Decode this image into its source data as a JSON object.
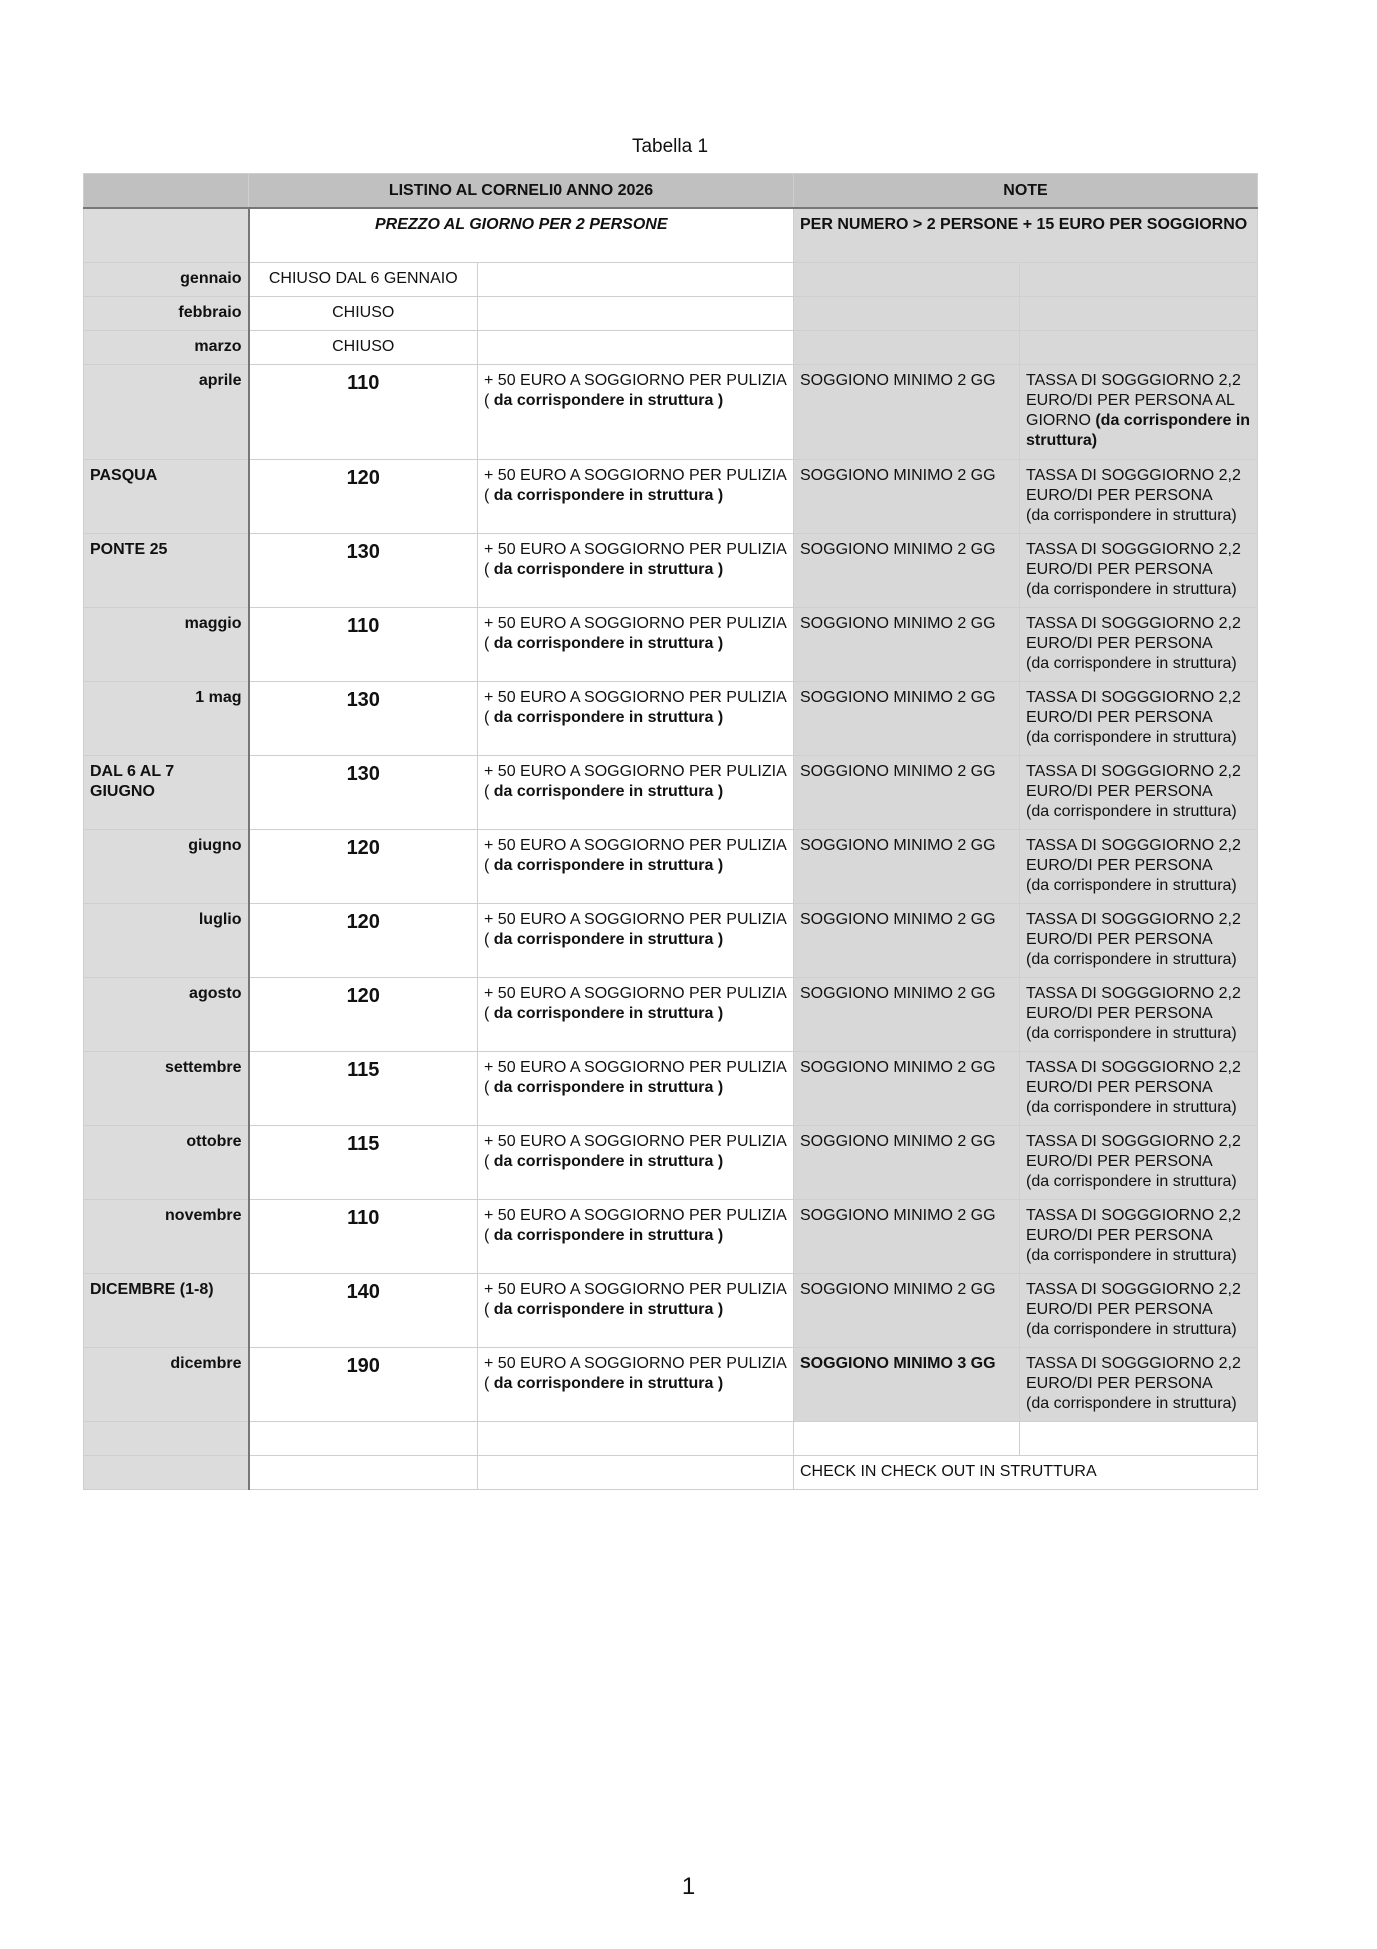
{
  "title": "Tabella 1",
  "header": {
    "listino": "LISTINO AL CORNELI0 ANNO 2026",
    "note": "NOTE"
  },
  "subheader": {
    "prezzo": "PREZZO AL GIORNO PER 2 PERSONE",
    "note": "PER NUMERO > 2 PERSONE + 15 EURO PER SOGGIORNO"
  },
  "closed_rows": [
    {
      "label": "gennaio",
      "value": "CHIUSO DAL 6 GENNAIO"
    },
    {
      "label": "febbraio",
      "value": "CHIUSO"
    },
    {
      "label": "marzo",
      "value": "CHIUSO"
    }
  ],
  "extra_a": "+ 50 EURO A SOGGIORNO PER PULIZIA  ( ",
  "extra_b": "da corrispondere in struttura )",
  "tax_a": "TASSA DI SOGGGIORNO 2,2 EURO/DI PER PERSONA",
  "tax_b": "(da corrispondere in struttura)",
  "tax_first_a": "TASSA DI SOGGGIORNO 2,2 EURO/DI PER PERSONA AL GIORNO  ",
  "tax_first_b": "(da corrispondere in struttura)",
  "rows": [
    {
      "label": "aprile",
      "price": "110",
      "min": "SOGGIONO MINIMO 2 GG"
    },
    {
      "label": "PASQUA",
      "price": "120",
      "min": "SOGGIONO MINIMO 2 GG"
    },
    {
      "label": "PONTE 25",
      "price": "130",
      "min": "SOGGIONO MINIMO 2 GG"
    },
    {
      "label": "maggio",
      "price": "110",
      "min": "SOGGIONO MINIMO 2 GG"
    },
    {
      "label": "1 mag",
      "price": "130",
      "min": "SOGGIONO MINIMO 2 GG"
    },
    {
      "label": "DAL 6 AL 7 GIUGNO",
      "price": "130",
      "min": "SOGGIONO MINIMO 2 GG"
    },
    {
      "label": "giugno",
      "price": "120",
      "min": "SOGGIONO MINIMO 2 GG"
    },
    {
      "label": "luglio",
      "price": "120",
      "min": "SOGGIONO MINIMO 2 GG"
    },
    {
      "label": "agosto",
      "price": "120",
      "min": "SOGGIONO MINIMO 2 GG"
    },
    {
      "label": "settembre",
      "price": "115",
      "min": "SOGGIONO MINIMO 2 GG"
    },
    {
      "label": "ottobre",
      "price": "115",
      "min": "SOGGIONO MINIMO 2 GG"
    },
    {
      "label": "novembre",
      "price": "110",
      "min": "SOGGIONO MINIMO 2 GG"
    },
    {
      "label": "DICEMBRE (1-8)",
      "price": "140",
      "min": "SOGGIONO MINIMO 2 GG"
    },
    {
      "label": "dicembre",
      "price": "190",
      "min": "SOGGIONO MINIMO 3 GG"
    }
  ],
  "footer_note": "CHECK IN CHECK OUT IN STRUTTURA",
  "page_number": "1"
}
